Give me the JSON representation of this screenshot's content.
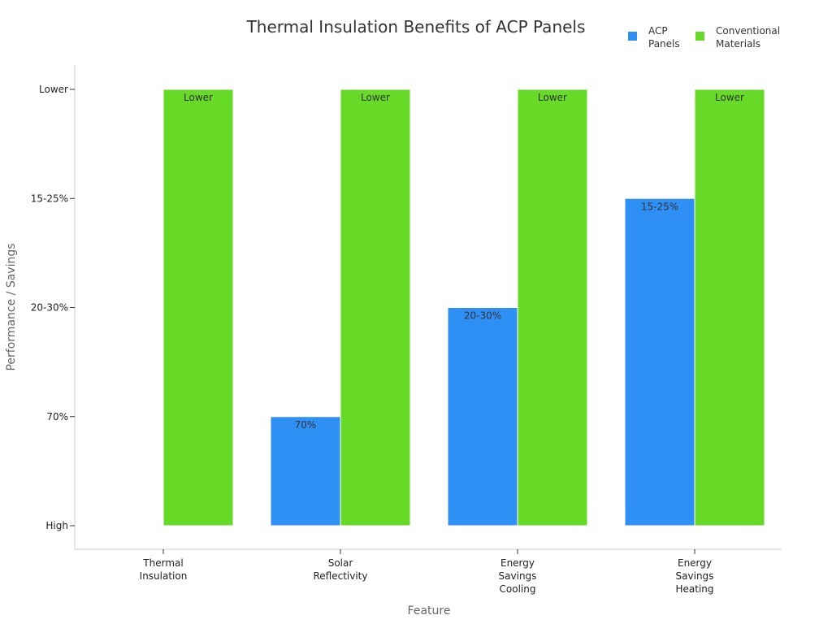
{
  "chart_data": {
    "type": "bar",
    "title": "Thermal Insulation Benefits of ACP Panels",
    "xlabel": "Feature",
    "ylabel": "Performance / Savings",
    "categories": [
      [
        "Thermal",
        "Insulation"
      ],
      [
        "Solar",
        "Reflectivity"
      ],
      [
        "Energy",
        "Savings",
        "Cooling"
      ],
      [
        "Energy",
        "Savings",
        "Heating"
      ]
    ],
    "y_ticks": [
      "High",
      "70%",
      "20-30%",
      "15-25%",
      "Lower"
    ],
    "ylim": [
      0,
      4
    ],
    "series": [
      {
        "name": "ACP Panels",
        "legend_lines": [
          "ACP",
          "Panels"
        ],
        "color": "#2E8FF5",
        "values": [
          0,
          1,
          2,
          3
        ],
        "labels": [
          "",
          "70%",
          "20-30%",
          "15-25%"
        ]
      },
      {
        "name": "Conventional Materials",
        "legend_lines": [
          "Conventional",
          "Materials"
        ],
        "color": "#66DA26",
        "values": [
          4,
          4,
          4,
          4
        ],
        "labels": [
          "Lower",
          "Lower",
          "Lower",
          "Lower"
        ]
      }
    ],
    "legend_position": "top-right",
    "grid": false
  }
}
